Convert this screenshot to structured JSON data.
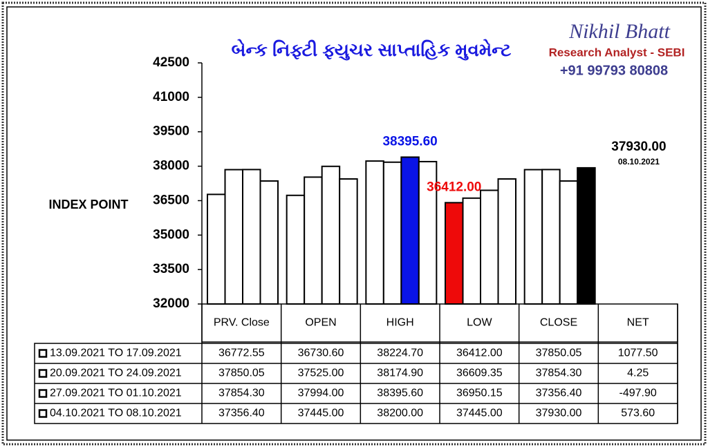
{
  "chart_data": {
    "type": "bar",
    "title": "બેન્ક નિફ્ટી ફ્યુચર સાપ્તાહિક મુવમેન્ટ",
    "brand": "Nikhil Bhatt",
    "subtitle": "Research Analyst - SEBI",
    "phone": "+91 99793 80808",
    "ylabel": "INDEX POINT",
    "categories": [
      "PRV. Close",
      "OPEN",
      "HIGH",
      "LOW",
      "CLOSE",
      "NET"
    ],
    "series": [
      {
        "name": "13.09.2021 TO 17.09.2021",
        "color": "#ffffff",
        "values": [
          36772.55,
          36730.6,
          38224.7,
          36412,
          37850.05,
          1077.5
        ],
        "value_labels": [
          "36772.55",
          "36730.60",
          "38224.70",
          "36412.00",
          "37850.05",
          "1077.50"
        ]
      },
      {
        "name": "20.09.2021 TO 24.09.2021",
        "color": "#ffffff",
        "values": [
          37850.05,
          37525,
          38174.9,
          36609.35,
          37854.3,
          4.25
        ],
        "value_labels": [
          "37850.05",
          "37525.00",
          "38174.90",
          "36609.35",
          "37854.30",
          "4.25"
        ]
      },
      {
        "name": "27.09.2021 TO 01.10.2021",
        "color": "#ffffff",
        "values": [
          37854.3,
          37994,
          38395.6,
          36950.15,
          37356.4,
          -497.9
        ],
        "value_labels": [
          "37854.30",
          "37994.00",
          "38395.60",
          "36950.15",
          "37356.40",
          "-497.90"
        ]
      },
      {
        "name": "04.10.2021 TO 08.10.2021",
        "color": "#ffffff",
        "values": [
          37356.4,
          37445,
          38200,
          37445,
          37930,
          573.6
        ],
        "value_labels": [
          "37356.40",
          "37445.00",
          "38200.00",
          "37445.00",
          "37930.00",
          "573.60"
        ]
      }
    ],
    "highlights": [
      {
        "series": 2,
        "category": 2,
        "color": "#0a14e6",
        "label": "38395.60"
      },
      {
        "series": 0,
        "category": 3,
        "color": "#ee0a0a",
        "label": "36412.00"
      },
      {
        "series": 3,
        "category": 4,
        "color": "#000000",
        "label": "37930.00",
        "note": "08.10.2021"
      }
    ],
    "ylim": [
      32000,
      42500
    ],
    "yticks": [
      32000,
      33500,
      35000,
      36500,
      38000,
      39500,
      41000,
      42500
    ]
  }
}
